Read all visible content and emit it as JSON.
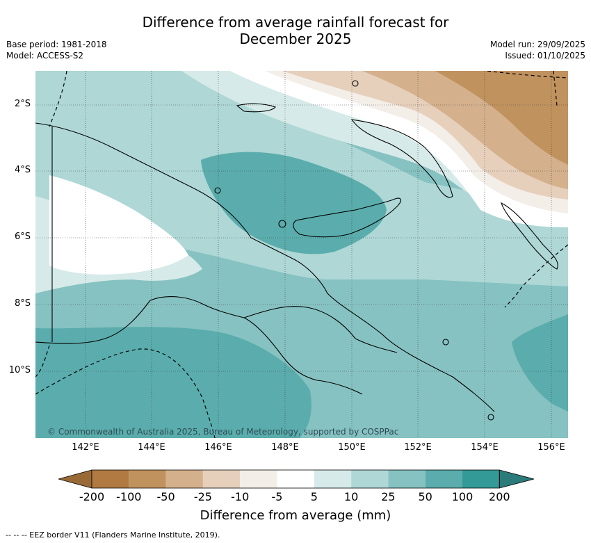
{
  "title_line1": "Difference from average rainfall forecast for",
  "title_line2": "December 2025",
  "meta_left": {
    "base_period": "Base period: 1981-2018",
    "model": "Model: ACCESS-S2"
  },
  "meta_right": {
    "model_run": "Model run: 29/09/2025",
    "issued": "Issued: 01/10/2025"
  },
  "copyright": "© Commonwealth of Australia 2025, Bureau of Meteorology, supported by COSPPac",
  "lon_ticks": [
    "142°E",
    "144°E",
    "146°E",
    "148°E",
    "150°E",
    "152°E",
    "154°E",
    "156°E"
  ],
  "lat_ticks": [
    "2°S",
    "4°S",
    "6°S",
    "8°S",
    "10°S"
  ],
  "colorbar": {
    "title": "Difference from average (mm)",
    "bounds": [
      "-200",
      "-100",
      "-50",
      "-25",
      "-10",
      "-5",
      "5",
      "10",
      "25",
      "50",
      "100",
      "200"
    ],
    "colors": [
      "#b07a42",
      "#c0925e",
      "#d4b08c",
      "#e6d0bc",
      "#f4eee8",
      "#ffffff",
      "#d6eae9",
      "#aed7d6",
      "#86c2c1",
      "#5aadac",
      "#349a98"
    ],
    "extend_low_color": "#9a6a36",
    "extend_high_color": "#2a7b7a"
  },
  "map_colors": {
    "d10": "#86c2c1",
    "d25": "#aed7d6",
    "d50": "#5aadac",
    "d5": "#d6eae9",
    "w5": "#ffffff",
    "wm10": "#f4eee8",
    "wm25": "#e6d0bc",
    "wm50": "#d4b08c",
    "wm100": "#c0925e"
  },
  "footer": "--  --  -- EEZ border V11 (Flanders Marine Institute, 2019)."
}
